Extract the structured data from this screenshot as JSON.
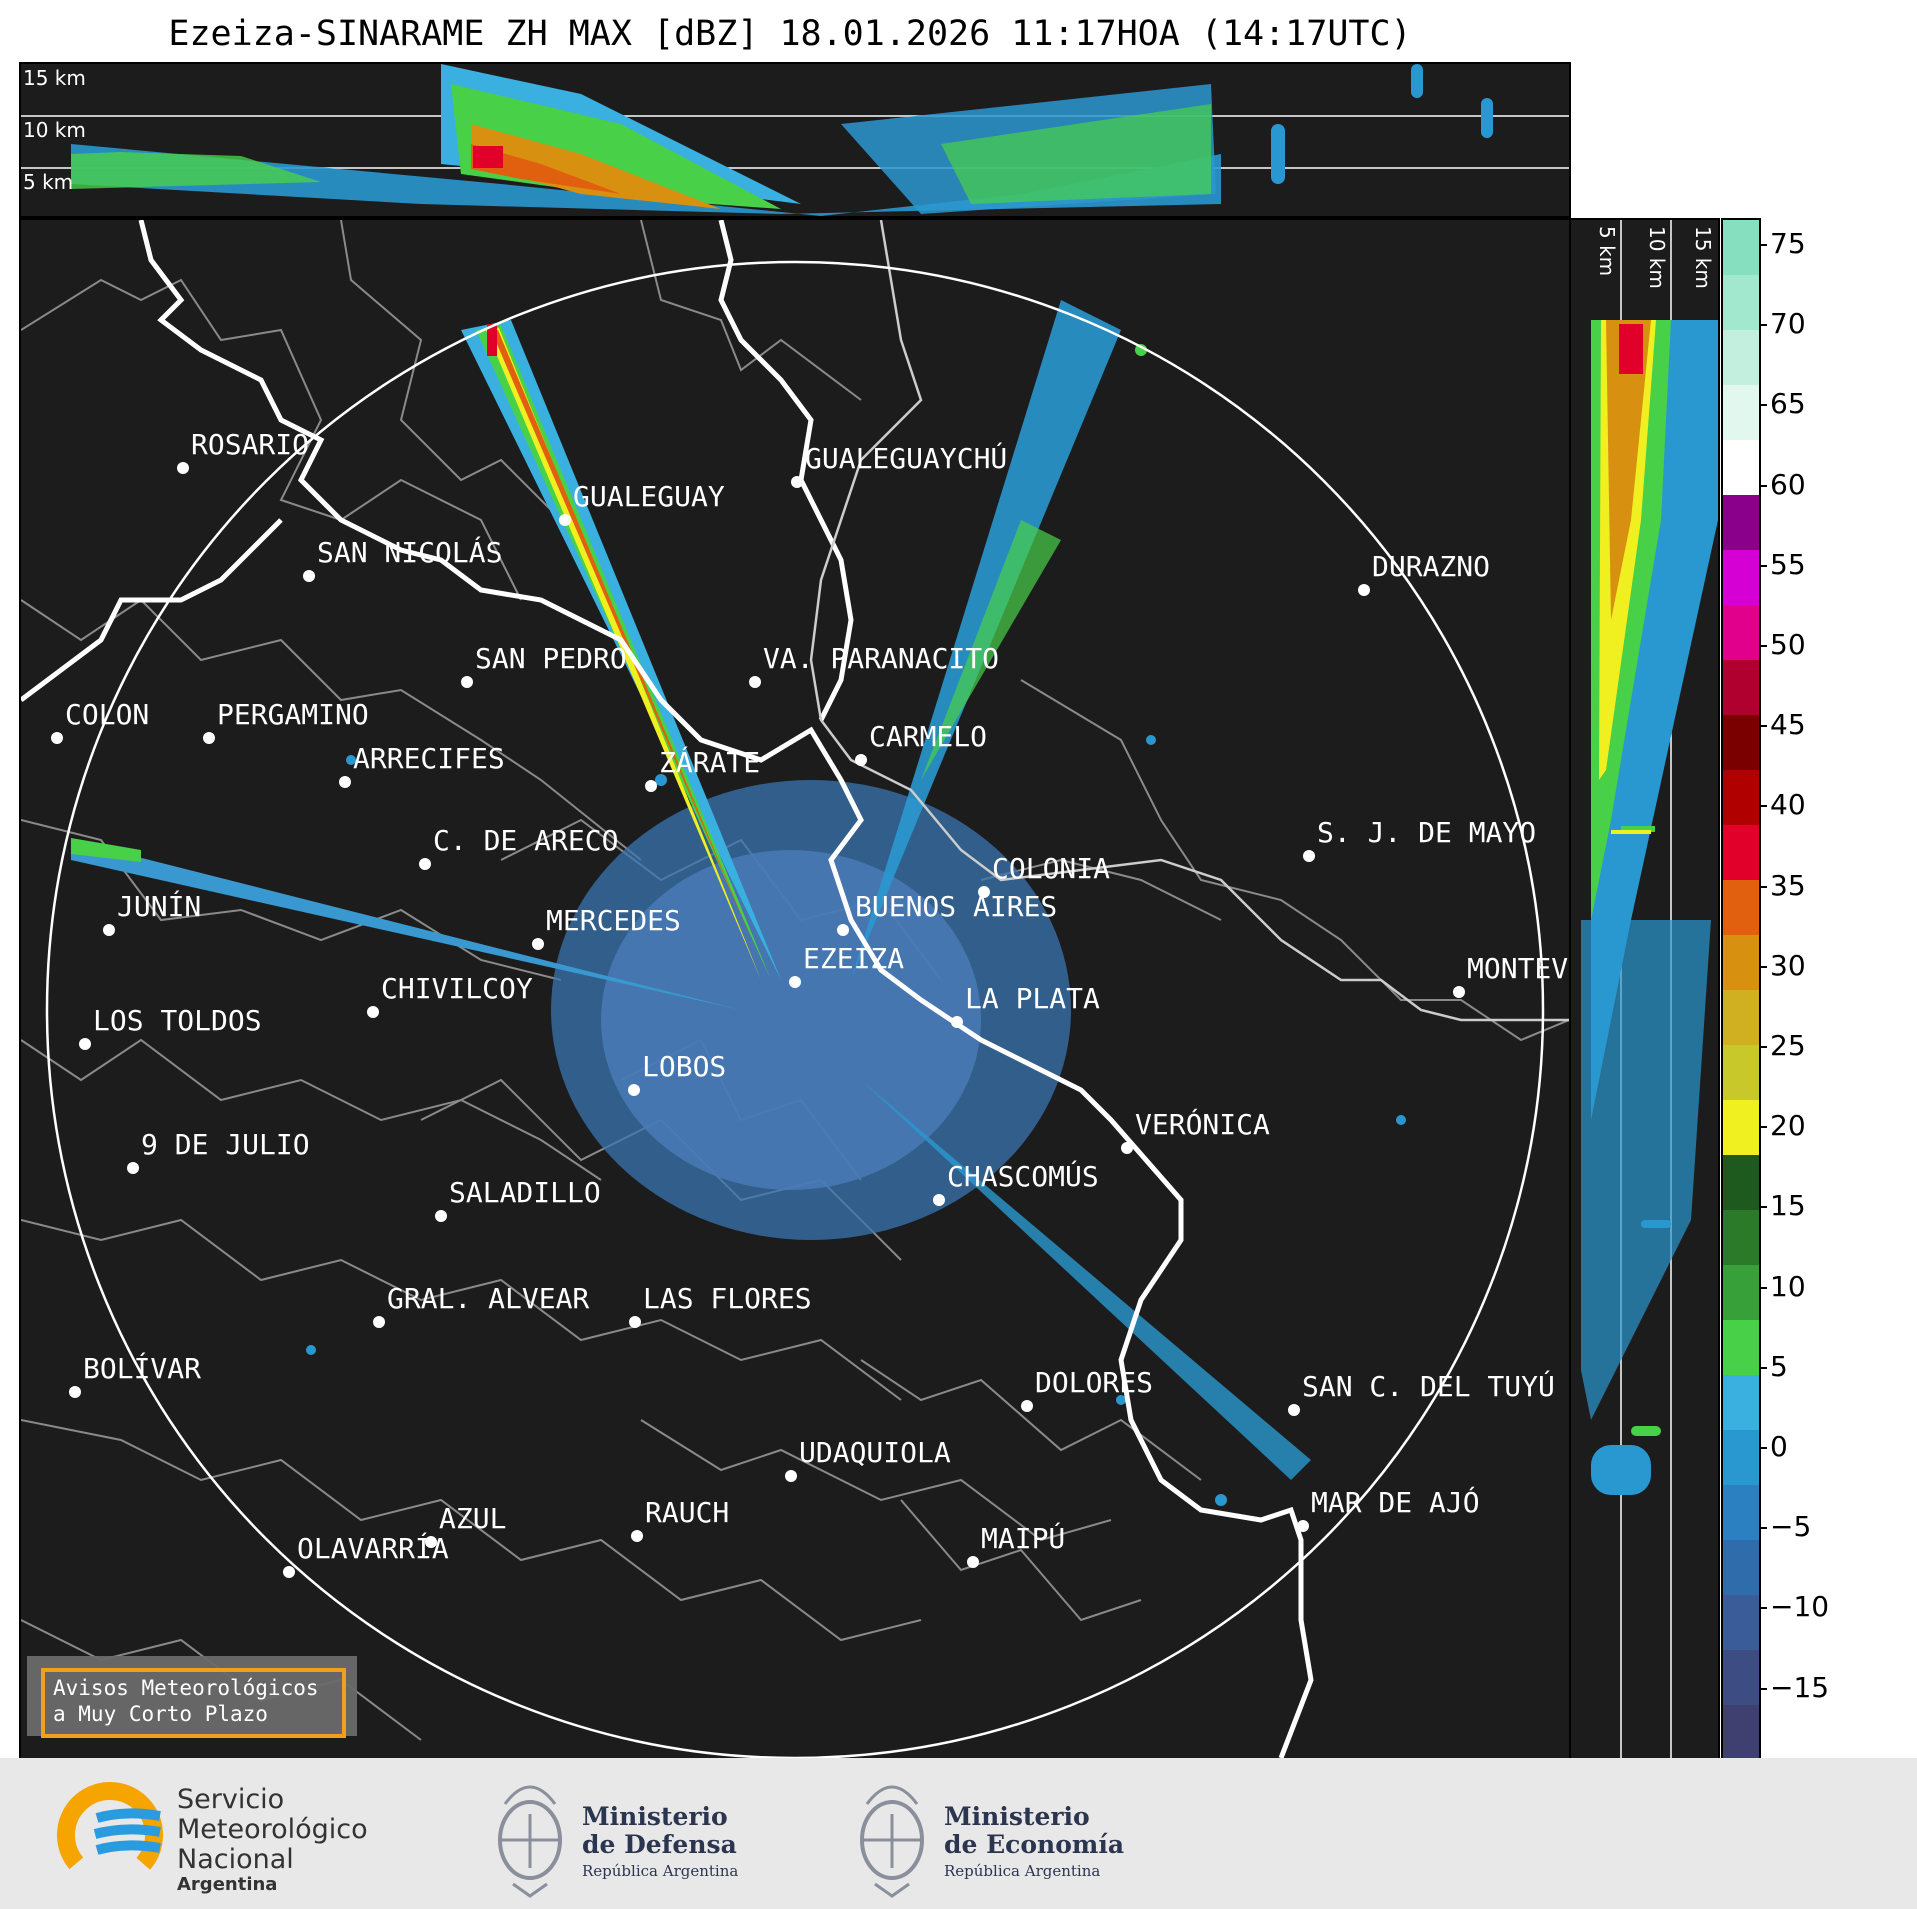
{
  "title": "Ezeiza-SINARAME ZH MAX [dBZ] 18.01.2026 11:17HOA (14:17UTC)",
  "top_panel": {
    "heights": [
      "15 km",
      "10 km",
      "5 km"
    ]
  },
  "right_panel": {
    "heights": [
      "5 km",
      "10 km",
      "15 km"
    ]
  },
  "colorbar": {
    "ticks": [
      "75",
      "70",
      "65",
      "60",
      "55",
      "50",
      "45",
      "40",
      "35",
      "30",
      "25",
      "20",
      "15",
      "10",
      "5",
      "0",
      "−5",
      "−10",
      "−15"
    ],
    "colors": [
      "#86e0bf",
      "#a2e8ce",
      "#c3f0de",
      "#e2f8ef",
      "#ffffff",
      "#8b008b",
      "#d400d4",
      "#e0008c",
      "#b00030",
      "#7a0000",
      "#b00000",
      "#e0002a",
      "#e06010",
      "#d89010",
      "#d0b020",
      "#c8c82a",
      "#f0f020",
      "#1e5a1e",
      "#2a7a2a",
      "#38a038",
      "#48d048",
      "#3ab0e0",
      "#2a98d0",
      "#2a80c0",
      "#2e6cac",
      "#3a5c98",
      "#3e4c84",
      "#404070"
    ]
  },
  "cities": [
    {
      "name": "ROSARIO"
    },
    {
      "name": "GUALEGUAYCHÚ"
    },
    {
      "name": "GUALEGUAY"
    },
    {
      "name": "SAN NICOLÁS"
    },
    {
      "name": "DURAZNO"
    },
    {
      "name": "SAN PEDRO"
    },
    {
      "name": "VA. PARANACITO"
    },
    {
      "name": "COLON"
    },
    {
      "name": "PERGAMINO"
    },
    {
      "name": "CARMELO"
    },
    {
      "name": "ARRECIFES"
    },
    {
      "name": "ZÁRATE"
    },
    {
      "name": "C. DE ARECO"
    },
    {
      "name": "S. J. DE MAYO"
    },
    {
      "name": "COLONIA"
    },
    {
      "name": "JUNÍN"
    },
    {
      "name": "BUENOS AIRES"
    },
    {
      "name": "MERCEDES"
    },
    {
      "name": "EZEIZA"
    },
    {
      "name": "CHIVILCOY"
    },
    {
      "name": "LA PLATA"
    },
    {
      "name": "MONTEV"
    },
    {
      "name": "LOS TOLDOS"
    },
    {
      "name": "LOBOS"
    },
    {
      "name": "VERÓNICA"
    },
    {
      "name": "9 DE JULIO"
    },
    {
      "name": "CHASCOMÚS"
    },
    {
      "name": "SALADILLO"
    },
    {
      "name": "GRAL. ALVEAR"
    },
    {
      "name": "LAS FLORES"
    },
    {
      "name": "BOLÍVAR"
    },
    {
      "name": "DOLORES"
    },
    {
      "name": "SAN C. DEL TUYÚ"
    },
    {
      "name": "UDAQUIOLA"
    },
    {
      "name": "MAR DE AJÓ"
    },
    {
      "name": "RAUCH"
    },
    {
      "name": "AZUL"
    },
    {
      "name": "OLAVARRÍA"
    },
    {
      "name": "MAIPÚ"
    }
  ],
  "notice": {
    "line1": "Avisos Meteorológicos",
    "line2": "a Muy Corto Plazo"
  },
  "footer": {
    "smn": {
      "line1": "Servicio",
      "line2": "Meteorológico",
      "line3": "Nacional",
      "line4": "Argentina"
    },
    "defensa": {
      "line1": "Ministerio",
      "line2": "de Defensa",
      "line3": "República Argentina"
    },
    "economia": {
      "line1": "Ministerio",
      "line2": "de Economía",
      "line3": "República Argentina"
    }
  }
}
